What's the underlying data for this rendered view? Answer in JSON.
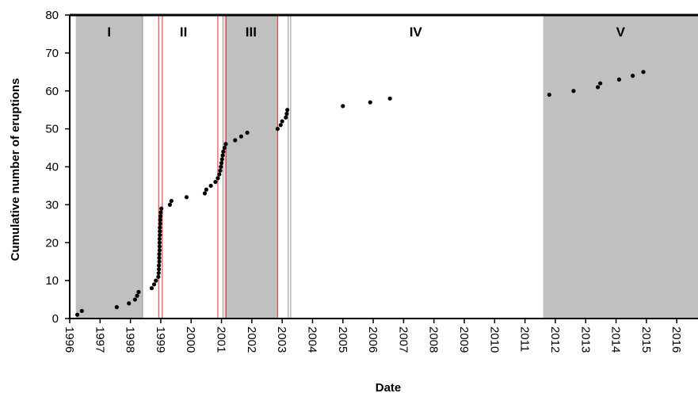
{
  "chart_data": {
    "type": "scatter",
    "xlabel": "Date",
    "ylabel": "Cumulative number of eruptions",
    "xlim": [
      1996,
      2016.7
    ],
    "ylim": [
      0,
      80
    ],
    "x_ticks": [
      "1996",
      "1997",
      "1998",
      "1999",
      "2000",
      "2001",
      "2002",
      "2003",
      "2004",
      "2005",
      "2006",
      "2007",
      "2008",
      "2009",
      "2010",
      "2011",
      "2012",
      "2013",
      "2014",
      "2015",
      "2016"
    ],
    "y_ticks": [
      "0",
      "10",
      "20",
      "30",
      "40",
      "50",
      "60",
      "70",
      "80"
    ],
    "grid": false,
    "legend": "none",
    "shaded_periods": [
      {
        "label": "I",
        "start": 1996.2,
        "end": 1998.4
      },
      {
        "label": "III",
        "start": 2001.1,
        "end": 2002.85
      },
      {
        "label": "V",
        "start": 2011.6,
        "end": 2016.7
      }
    ],
    "unshaded_periods": [
      {
        "label": "II",
        "start": 1998.4,
        "end": 2001.1
      },
      {
        "label": "IV",
        "start": 2003.2,
        "end": 2011.6
      }
    ],
    "red_lines": [
      1998.93,
      1999.05,
      2000.88,
      2001.15,
      2002.85
    ],
    "gray_lines": [
      1998.4,
      2001.05,
      2003.2,
      2003.28
    ],
    "points": [
      {
        "x": 1996.25,
        "y": 1
      },
      {
        "x": 1996.4,
        "y": 2
      },
      {
        "x": 1997.55,
        "y": 3
      },
      {
        "x": 1997.95,
        "y": 4
      },
      {
        "x": 1998.15,
        "y": 5
      },
      {
        "x": 1998.22,
        "y": 6
      },
      {
        "x": 1998.27,
        "y": 7
      },
      {
        "x": 1998.7,
        "y": 8
      },
      {
        "x": 1998.78,
        "y": 9
      },
      {
        "x": 1998.84,
        "y": 10
      },
      {
        "x": 1998.92,
        "y": 11
      },
      {
        "x": 1998.93,
        "y": 12
      },
      {
        "x": 1998.94,
        "y": 13
      },
      {
        "x": 1998.94,
        "y": 14
      },
      {
        "x": 1998.95,
        "y": 15
      },
      {
        "x": 1998.95,
        "y": 16
      },
      {
        "x": 1998.95,
        "y": 17
      },
      {
        "x": 1998.96,
        "y": 18
      },
      {
        "x": 1998.96,
        "y": 19
      },
      {
        "x": 1998.96,
        "y": 20
      },
      {
        "x": 1998.96,
        "y": 21
      },
      {
        "x": 1998.97,
        "y": 22
      },
      {
        "x": 1998.97,
        "y": 23
      },
      {
        "x": 1998.97,
        "y": 24
      },
      {
        "x": 1998.98,
        "y": 25
      },
      {
        "x": 1998.98,
        "y": 26
      },
      {
        "x": 1998.99,
        "y": 27
      },
      {
        "x": 1999.0,
        "y": 28
      },
      {
        "x": 1999.02,
        "y": 29
      },
      {
        "x": 1999.3,
        "y": 30
      },
      {
        "x": 1999.35,
        "y": 31
      },
      {
        "x": 1999.85,
        "y": 32
      },
      {
        "x": 2000.45,
        "y": 33
      },
      {
        "x": 2000.5,
        "y": 34
      },
      {
        "x": 2000.65,
        "y": 35
      },
      {
        "x": 2000.8,
        "y": 36
      },
      {
        "x": 2000.88,
        "y": 37
      },
      {
        "x": 2000.93,
        "y": 38
      },
      {
        "x": 2000.96,
        "y": 39
      },
      {
        "x": 2000.98,
        "y": 40
      },
      {
        "x": 2001.0,
        "y": 41
      },
      {
        "x": 2001.02,
        "y": 42
      },
      {
        "x": 2001.04,
        "y": 43
      },
      {
        "x": 2001.06,
        "y": 44
      },
      {
        "x": 2001.1,
        "y": 45
      },
      {
        "x": 2001.14,
        "y": 46
      },
      {
        "x": 2001.45,
        "y": 47
      },
      {
        "x": 2001.65,
        "y": 48
      },
      {
        "x": 2001.85,
        "y": 49
      },
      {
        "x": 2002.85,
        "y": 50
      },
      {
        "x": 2002.95,
        "y": 51
      },
      {
        "x": 2003.0,
        "y": 52
      },
      {
        "x": 2003.12,
        "y": 53
      },
      {
        "x": 2003.15,
        "y": 54
      },
      {
        "x": 2003.17,
        "y": 55
      },
      {
        "x": 2005.0,
        "y": 56
      },
      {
        "x": 2005.9,
        "y": 57
      },
      {
        "x": 2006.55,
        "y": 58
      },
      {
        "x": 2011.8,
        "y": 59
      },
      {
        "x": 2012.6,
        "y": 60
      },
      {
        "x": 2013.4,
        "y": 61
      },
      {
        "x": 2013.48,
        "y": 62
      },
      {
        "x": 2014.1,
        "y": 63
      },
      {
        "x": 2014.55,
        "y": 64
      },
      {
        "x": 2014.9,
        "y": 65
      }
    ]
  }
}
